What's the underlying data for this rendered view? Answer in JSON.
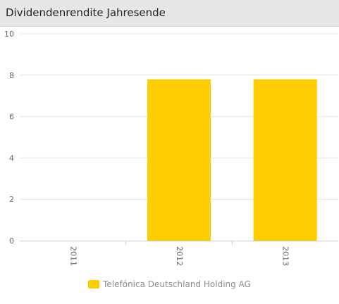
{
  "header": {
    "title": "Dividendenrendite Jahresende"
  },
  "colors": {
    "series": "#ffcc00",
    "grid": "#e6e6e6",
    "axis_text": "#666666"
  },
  "chart_data": {
    "type": "bar",
    "title": "Dividendenrendite Jahresende",
    "categories": [
      "2011",
      "2012",
      "2013"
    ],
    "series": [
      {
        "name": "Telefónica Deutschland Holding AG",
        "values": [
          0,
          7.8,
          7.8
        ]
      }
    ],
    "yticks": [
      "0",
      "2",
      "4",
      "6",
      "8",
      "10"
    ],
    "ylim": [
      0,
      10
    ],
    "xlabel": "",
    "ylabel": "",
    "grid": true,
    "legend_position": "bottom-center"
  }
}
